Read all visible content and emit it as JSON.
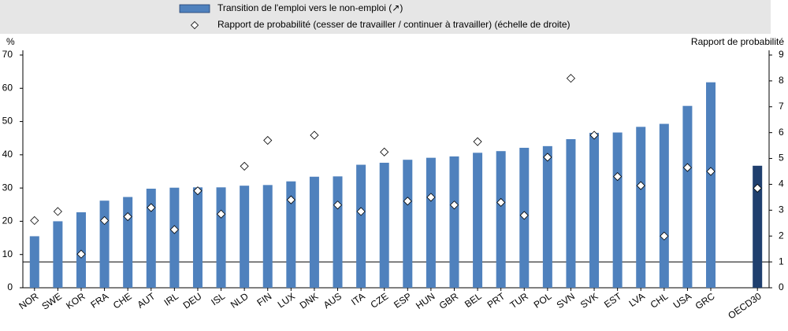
{
  "chart_data": {
    "type": "bar",
    "legend_position": "top",
    "y_label": "%",
    "y2_label": "Rapport de probabilité",
    "categories": [
      "NOR",
      "SWE",
      "KOR",
      "FRA",
      "CHE",
      "AUT",
      "IRL",
      "DEU",
      "ISL",
      "NLD",
      "FIN",
      "LUX",
      "DNK",
      "AUS",
      "ITA",
      "CZE",
      "ESP",
      "HUN",
      "GBR",
      "BEL",
      "PRT",
      "TUR",
      "POL",
      "SVN",
      "SVK",
      "EST",
      "LVA",
      "CHL",
      "USA",
      "GRC",
      null,
      "OECD30"
    ],
    "series": [
      {
        "name": "Transition de l'emploi vers le non-emploi (↗)",
        "type": "bar",
        "color": "#4f81bd",
        "colors": [
          "#4f81bd",
          "#4f81bd",
          "#4f81bd",
          "#4f81bd",
          "#4f81bd",
          "#4f81bd",
          "#4f81bd",
          "#4f81bd",
          "#4f81bd",
          "#4f81bd",
          "#4f81bd",
          "#4f81bd",
          "#4f81bd",
          "#4f81bd",
          "#4f81bd",
          "#4f81bd",
          "#4f81bd",
          "#4f81bd",
          "#4f81bd",
          "#4f81bd",
          "#4f81bd",
          "#4f81bd",
          "#4f81bd",
          "#4f81bd",
          "#4f81bd",
          "#4f81bd",
          "#4f81bd",
          "#4f81bd",
          "#4f81bd",
          "#4f81bd",
          null,
          "#1f3f6e"
        ],
        "values": [
          15.5,
          20,
          22.7,
          26.2,
          27.3,
          29.8,
          30.1,
          30.2,
          30.2,
          30.7,
          30.9,
          32,
          33.4,
          33.5,
          37,
          37.6,
          38.5,
          39.1,
          39.5,
          40.6,
          41.1,
          42.1,
          42.6,
          44.7,
          46.6,
          46.7,
          48.4,
          49.3,
          54.7,
          61.8,
          null,
          36.7
        ]
      },
      {
        "name": "Rapport de probabilité (cesser de travailler / continuer à travailler) (échelle de droite)",
        "type": "scatter",
        "marker": "diamond",
        "color": "#ffffff",
        "axis": "y2",
        "values": [
          2.6,
          2.95,
          1.3,
          2.6,
          2.75,
          3.1,
          2.25,
          3.75,
          2.85,
          4.7,
          5.7,
          3.4,
          5.9,
          3.2,
          2.95,
          5.25,
          3.35,
          3.5,
          3.2,
          5.65,
          3.3,
          2.8,
          5.05,
          8.1,
          5.9,
          4.3,
          3.95,
          2.0,
          4.65,
          4.5,
          null,
          3.85
        ]
      }
    ],
    "ylim": [
      0,
      70
    ],
    "yticks": [
      0,
      10,
      20,
      30,
      40,
      50,
      60,
      70
    ],
    "y2lim": [
      0,
      9
    ],
    "y2ticks": [
      0,
      1,
      2,
      3,
      4,
      5,
      6,
      7,
      8,
      9
    ],
    "reference_line_y2": 1,
    "grid": false
  }
}
